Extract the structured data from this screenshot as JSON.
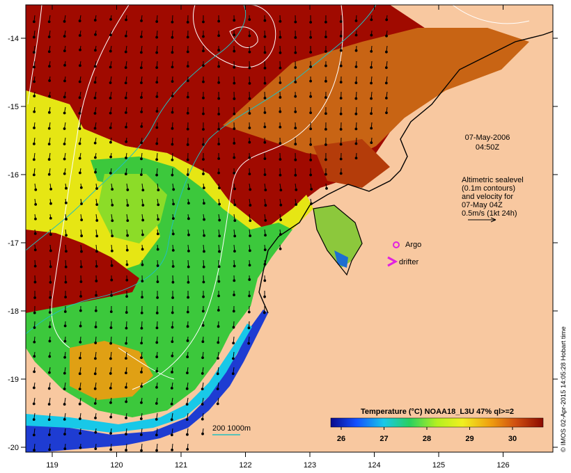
{
  "map": {
    "lon_ticks": [
      "119",
      "120",
      "121",
      "122",
      "123",
      "124",
      "125",
      "126"
    ],
    "lat_ticks": [
      "-14",
      "-15",
      "-16",
      "-17",
      "-18",
      "-19",
      "-20"
    ],
    "timestamp_date": "07-May-2006",
    "timestamp_time": "04:50Z",
    "altimetry_note": [
      "Altimetric sealevel",
      "(0.1m contours)",
      "and velocity for",
      "07-May 04Z",
      "0.5m/s (1kt 24h)"
    ],
    "legend": {
      "argo": "Argo",
      "drifter": "drifter",
      "argo_color": "#e020e0",
      "drifter_color": "#e020e0"
    },
    "depth_contour_label": "200  1000m",
    "depth_contour_color": "#20c0c0",
    "credit": "© IMOS 02-Apr-2015 14:05:28 Hobart time"
  },
  "colorbar": {
    "title": "Temperature (°C) NOAA18_L3U 47% ql>=2",
    "ticks": [
      "26",
      "27",
      "28",
      "29",
      "30"
    ],
    "stops": [
      "#0a0a8c",
      "#1450ff",
      "#18c8e8",
      "#28d060",
      "#b4f020",
      "#f0f020",
      "#f0a010",
      "#d05010",
      "#8c0a00"
    ]
  },
  "colors": {
    "land": "#f8c8a0",
    "sea_hot": "#a00a00",
    "sea_warm": "#c86414",
    "sea_mid": "#e6e614",
    "sea_cool": "#3cc83c",
    "sea_cold": "#1e3cd2"
  }
}
